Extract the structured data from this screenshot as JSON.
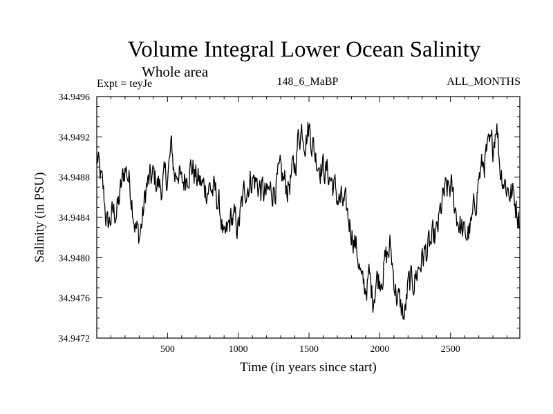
{
  "chart_data": {
    "type": "line",
    "title": "Volume Integral Lower Ocean Salinity",
    "subtitle": "Whole area",
    "experiment_label": "Expt = teyJe",
    "run_label": "148_6_MaBP",
    "months_label": "ALL_MONTHS",
    "xlabel": "Time (in years since start)",
    "ylabel": "Salinity (in PSU)",
    "xlim": [
      0,
      2990
    ],
    "ylim": [
      34.9472,
      34.9496
    ],
    "x_ticks": [
      500,
      1000,
      1500,
      2000,
      2500
    ],
    "y_ticks": [
      "34.9472",
      "34.9476",
      "34.9480",
      "34.9484",
      "34.9488",
      "34.9492",
      "34.9496"
    ],
    "line_color": "#000000",
    "series": [
      {
        "name": "Salinity",
        "x": [
          0,
          25,
          50,
          75,
          100,
          150,
          200,
          225,
          250,
          275,
          300,
          325,
          350,
          400,
          450,
          500,
          530,
          550,
          575,
          600,
          650,
          675,
          700,
          750,
          800,
          850,
          880,
          900,
          950,
          1000,
          1050,
          1100,
          1150,
          1200,
          1250,
          1300,
          1350,
          1400,
          1425,
          1450,
          1475,
          1500,
          1550,
          1600,
          1650,
          1700,
          1750,
          1800,
          1850,
          1875,
          1900,
          1925,
          1950,
          1975,
          2000,
          2025,
          2050,
          2075,
          2100,
          2125,
          2150,
          2175,
          2200,
          2250,
          2300,
          2350,
          2400,
          2450,
          2500,
          2550,
          2600,
          2650,
          2700,
          2750,
          2800,
          2825,
          2850,
          2900,
          2950,
          2990
        ],
        "values": [
          34.949,
          34.9488,
          34.9486,
          34.9483,
          34.9484,
          34.9485,
          34.9489,
          34.9488,
          34.9486,
          34.9483,
          34.9482,
          34.9484,
          34.9487,
          34.9488,
          34.9487,
          34.9488,
          34.9491,
          34.9488,
          34.9489,
          34.9487,
          34.9489,
          34.9489,
          34.9488,
          34.9487,
          34.9487,
          34.9486,
          34.9484,
          34.9481,
          34.9484,
          34.9483,
          34.9487,
          34.9488,
          34.9487,
          34.9486,
          34.9487,
          34.9488,
          34.9487,
          34.9489,
          34.9492,
          34.9493,
          34.9492,
          34.9493,
          34.949,
          34.9489,
          34.9488,
          34.9486,
          34.9485,
          34.9483,
          34.948,
          34.9477,
          34.9477,
          34.9478,
          34.9476,
          34.9478,
          34.9478,
          34.9479,
          34.948,
          34.9481,
          34.9478,
          34.9476,
          34.9475,
          34.9474,
          34.9477,
          34.9478,
          34.948,
          34.9481,
          34.9482,
          34.9486,
          34.9487,
          34.9484,
          34.9482,
          34.9483,
          34.9488,
          34.949,
          34.9491,
          34.9494,
          34.9489,
          34.9487,
          34.9486,
          34.9484
        ]
      }
    ]
  }
}
